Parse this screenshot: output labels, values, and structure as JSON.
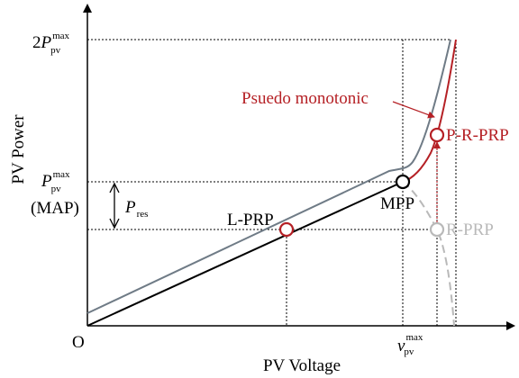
{
  "axes": {
    "x_label": "PV Voltage",
    "y_label": "PV Power",
    "origin_label": "O"
  },
  "labels": {
    "two_p_max": {
      "coef": "2",
      "main": "P",
      "sup": "max",
      "sub": "pv"
    },
    "p_max": {
      "main": "P",
      "sup": "max",
      "sub": "pv"
    },
    "map": "(MAP)",
    "p_res": {
      "main": "P",
      "sub": "res"
    },
    "v_max": {
      "main": "v",
      "sup": "max",
      "sub": "pv"
    },
    "lprp": "L-PRP",
    "mpp": "MPP",
    "prrp": "P-R-PRP",
    "rprp": "R-PRP",
    "pseudo": "Psuedo monotonic"
  },
  "colors": {
    "black": "#000000",
    "red": "#b52025",
    "gray": "#6f7b86",
    "light_gray": "#b9b9b9"
  }
}
